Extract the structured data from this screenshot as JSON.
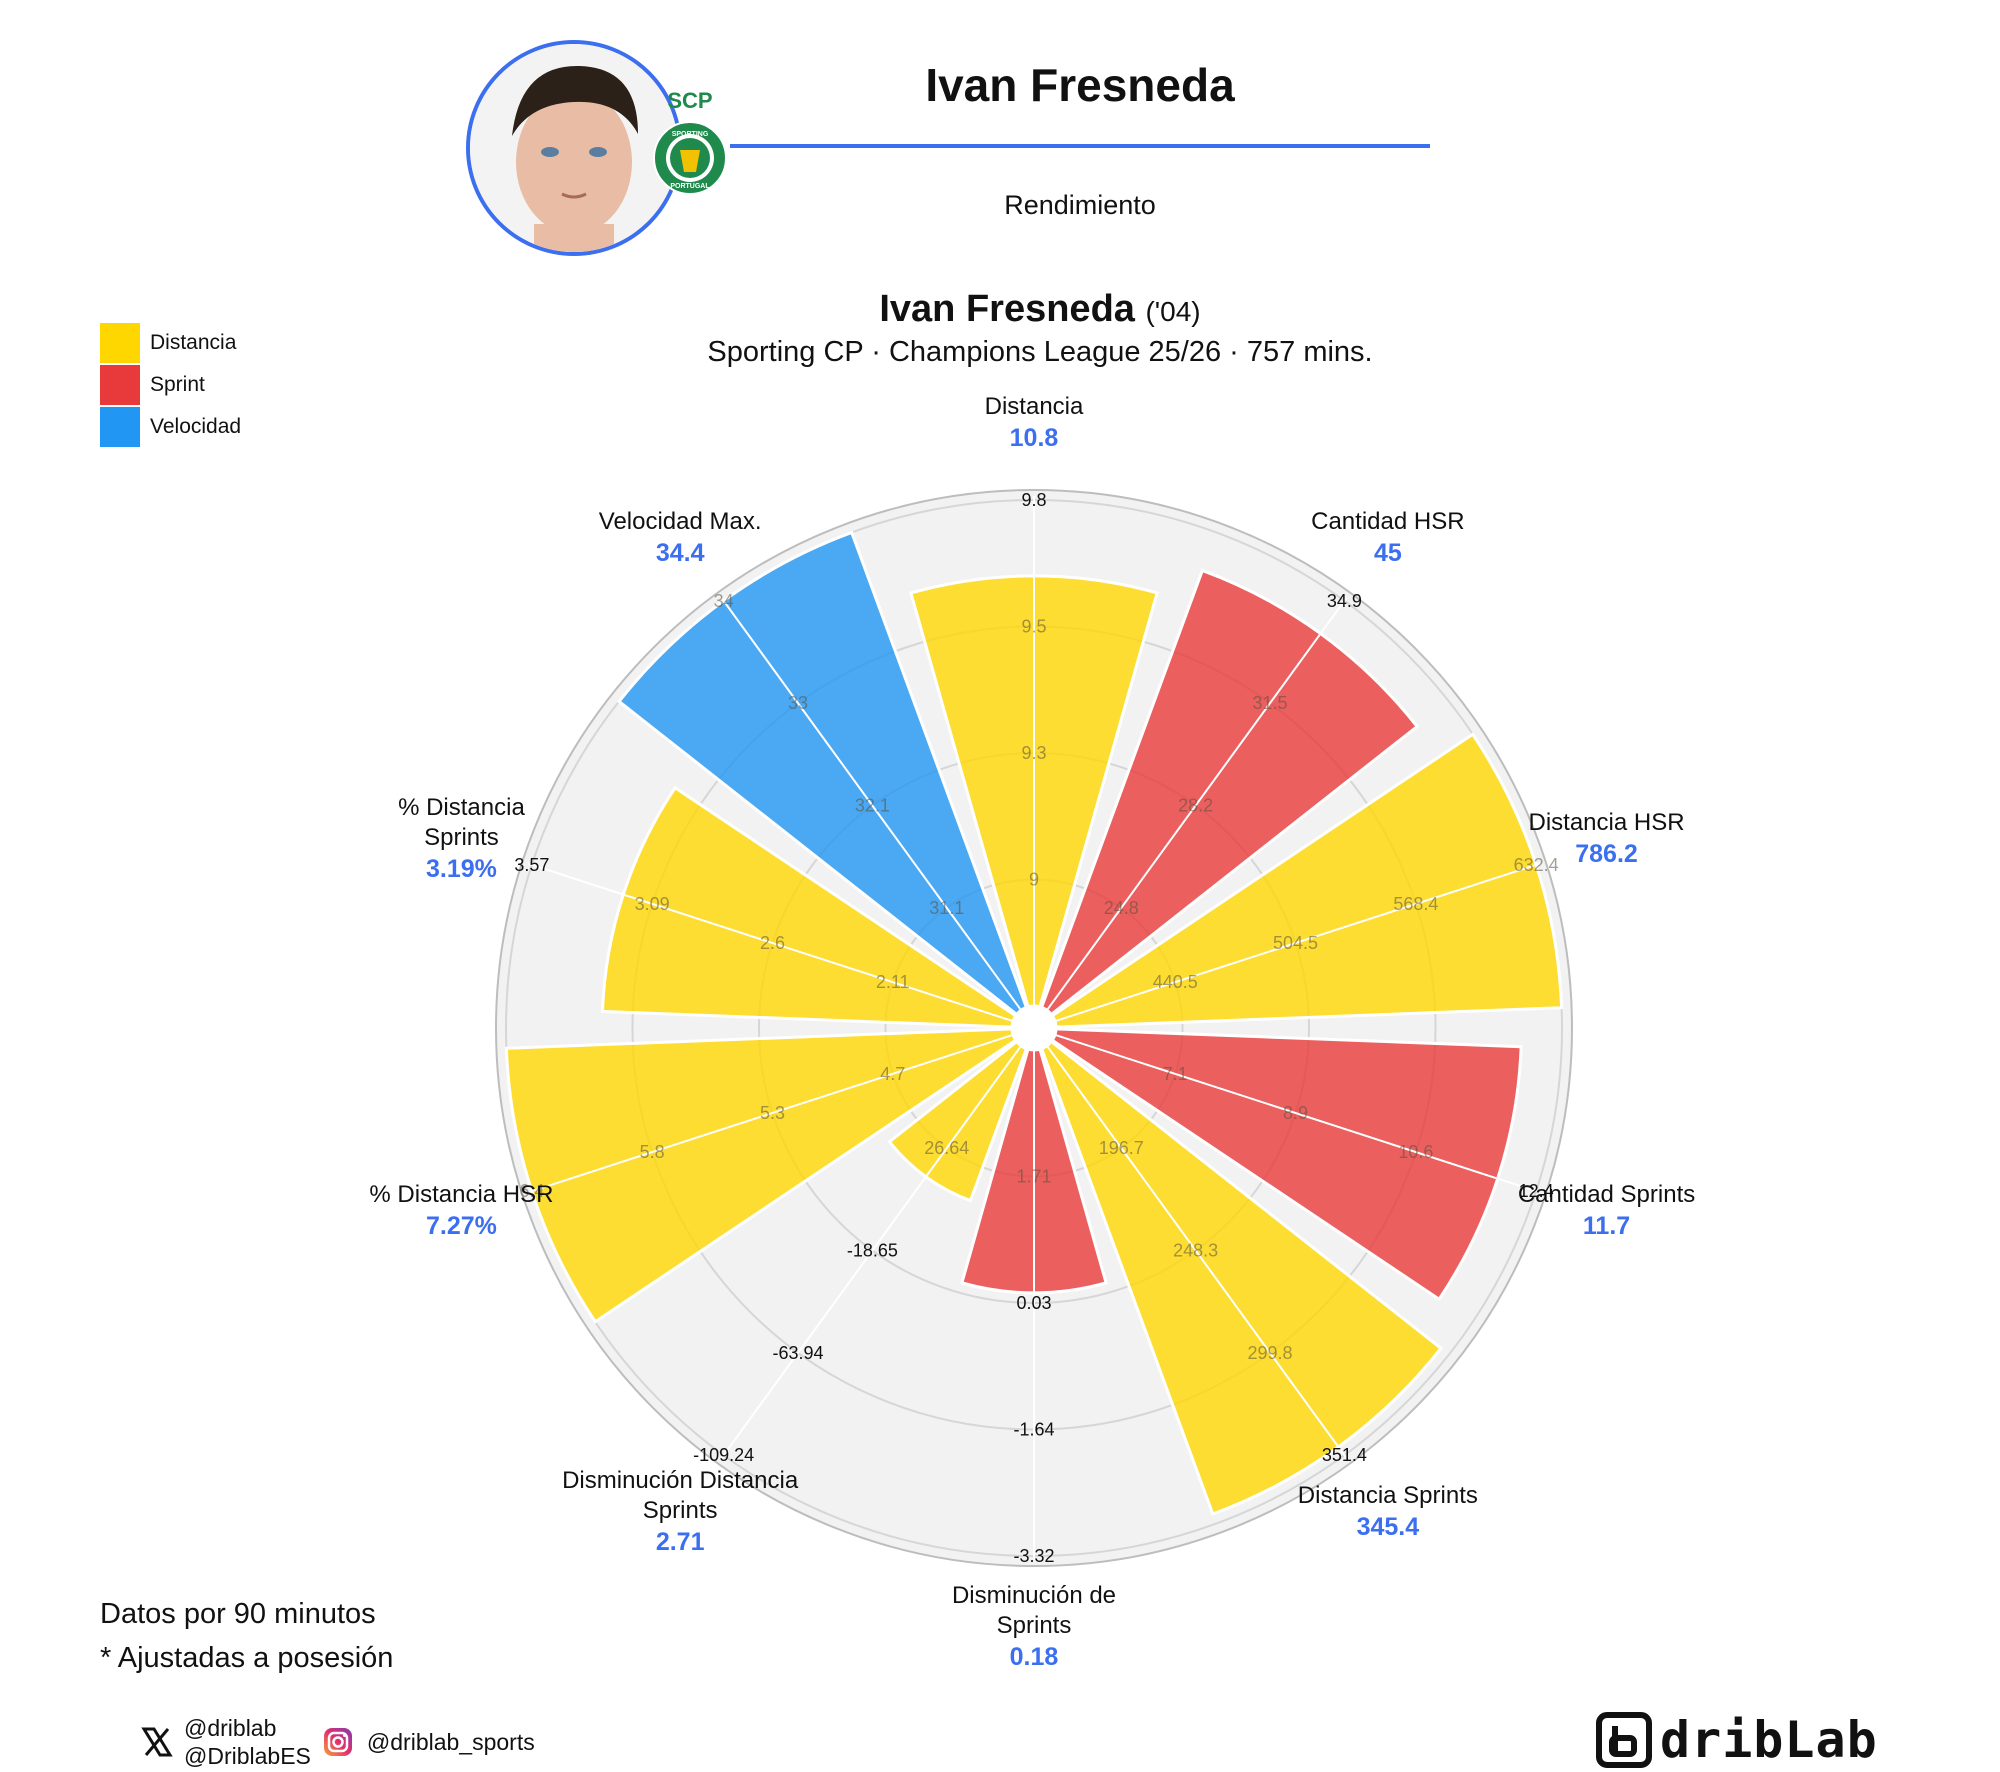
{
  "header": {
    "player_name": "Ivan Fresneda",
    "subtitle": "Rendimiento",
    "badge_text": "SCP",
    "badge_ring_top": "SPORTING",
    "badge_ring_bottom": "PORTUGAL"
  },
  "legend": [
    {
      "label": "Distancia",
      "color": "#FFD700"
    },
    {
      "label": "Sprint",
      "color": "#E83A3A"
    },
    {
      "label": "Velocidad",
      "color": "#2196F3"
    }
  ],
  "notes": {
    "line1": "Datos por 90 minutos",
    "line2": "* Ajustadas a posesión"
  },
  "social": {
    "x_handle_1": "@driblab",
    "x_handle_2": "@DriblabES",
    "instagram_handle": "@driblab_sports",
    "brand": "dribLab"
  },
  "chart_data": {
    "type": "radar",
    "title": "Ivan Fresneda",
    "title_year": "('04)",
    "subtitle": "Sporting CP · Champions League 25/26 · 757 mins.",
    "colors": {
      "Distancia": "#FFD700",
      "Sprint": "#E83A3A",
      "Velocidad": "#2196F3",
      "value_text": "#3b6ff0"
    },
    "categories": [
      {
        "label": "Distancia",
        "value": "10.8",
        "group": "Distancia",
        "percentile": 0.85,
        "ticks": [
          "9",
          "9.3",
          "9.5",
          "9.8"
        ]
      },
      {
        "label": "Cantidad HSR",
        "value": "45",
        "group": "Sprint",
        "percentile": 0.92,
        "ticks": [
          "24.8",
          "28.2",
          "31.5",
          "34.9"
        ]
      },
      {
        "label": "Distancia HSR",
        "value": "786.2",
        "group": "Distancia",
        "percentile": 1.0,
        "ticks": [
          "440.5",
          "504.5",
          "568.4",
          "632.4"
        ]
      },
      {
        "label": "Cantidad Sprints",
        "value": "11.7",
        "group": "Sprint",
        "percentile": 0.92,
        "ticks": [
          "7.1",
          "8.9",
          "10.6",
          "12.4"
        ]
      },
      {
        "label": "Distancia Sprints",
        "value": "345.4",
        "group": "Distancia",
        "percentile": 0.98,
        "ticks": [
          "196.7",
          "248.3",
          "299.8",
          "351.4"
        ]
      },
      {
        "label": "Disminución de Sprints",
        "value": "0.18",
        "group": "Sprint",
        "percentile": 0.48,
        "ticks": [
          "1.71",
          "0.03",
          "-1.64",
          "-3.32"
        ]
      },
      {
        "label": "Disminución Distancia Sprints",
        "value": "2.71",
        "group": "Distancia",
        "percentile": 0.32,
        "ticks": [
          "26.64",
          "-18.65",
          "-63.94",
          "-109.24"
        ]
      },
      {
        "label": "% Distancia HSR",
        "value": "7.27%",
        "group": "Distancia",
        "percentile": 1.0,
        "ticks": [
          "4.7",
          "5.3",
          "5.8",
          "6.4"
        ]
      },
      {
        "label": "% Distancia Sprints",
        "value": "3.19%",
        "group": "Distancia",
        "percentile": 0.81,
        "ticks": [
          "2.11",
          "2.6",
          "3.09",
          "3.57"
        ]
      },
      {
        "label": "Velocidad Max.",
        "value": "34.4",
        "group": "Velocidad",
        "percentile": 1.0,
        "ticks": [
          "31.1",
          "32.1",
          "33",
          "34"
        ]
      }
    ]
  }
}
